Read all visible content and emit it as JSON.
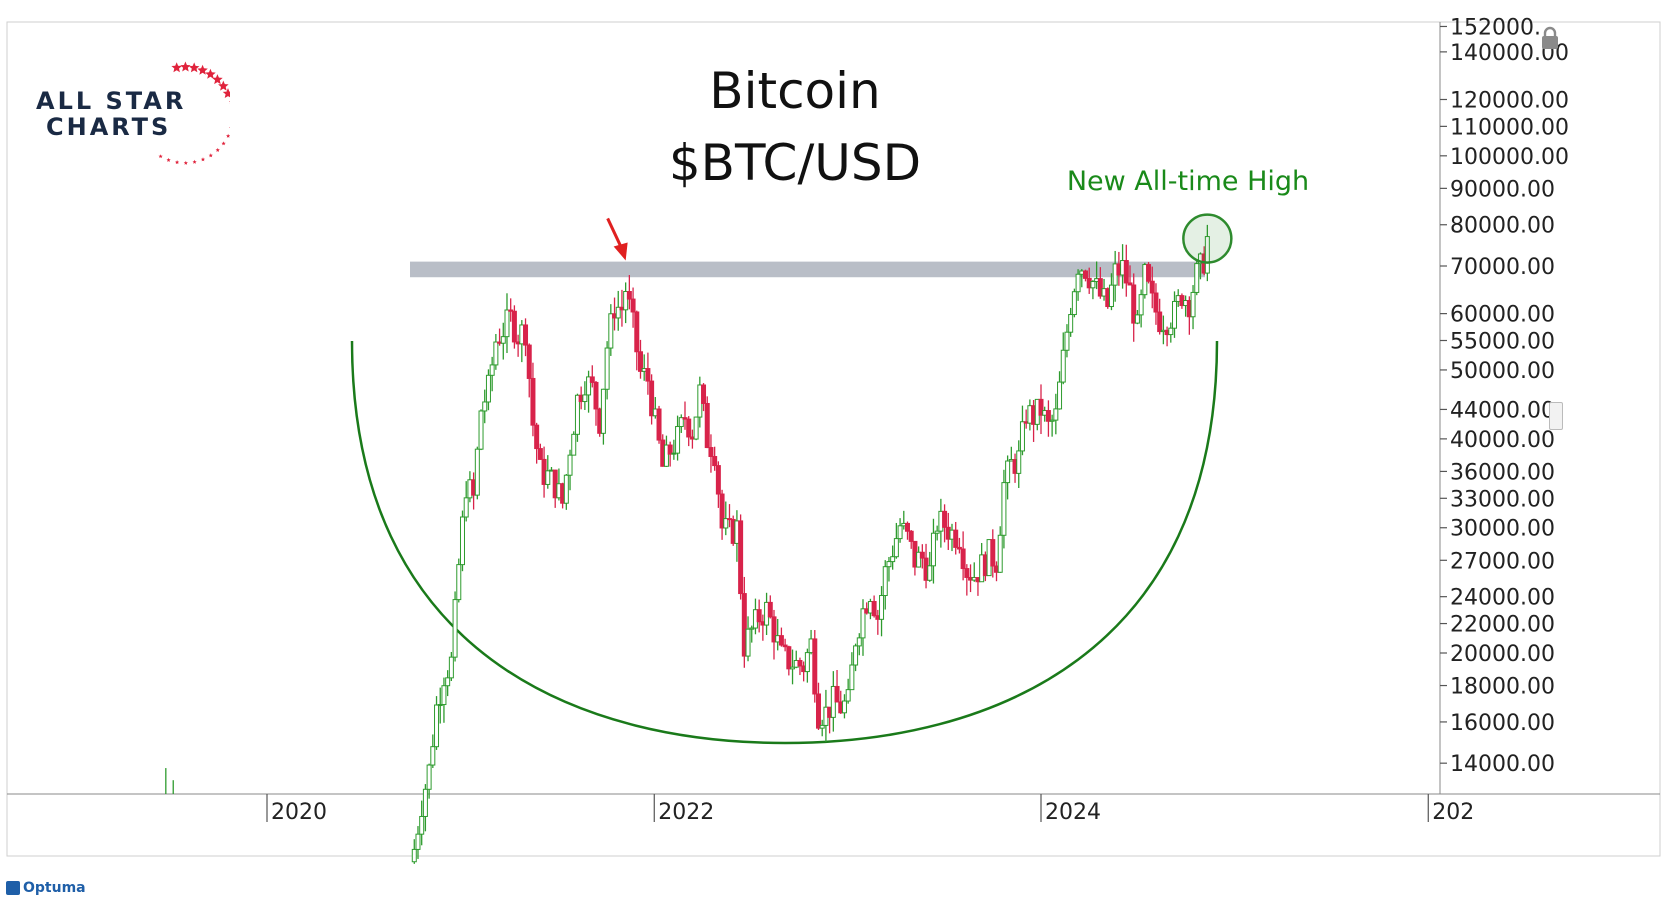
{
  "colors": {
    "up": "#2e9b2e",
    "down": "#d8234a",
    "resistance_band": "#b9bec7",
    "arc": "#1a7a1a",
    "circle": "#2e8b2e",
    "arrow": "#e02020",
    "annotation": "#1a8a1a",
    "logo_navy": "#1a2a44",
    "logo_red": "#e0233c",
    "brand_blue": "#1f5fa8"
  },
  "logo": {
    "line1": "ALL STAR",
    "line2": "CHARTS"
  },
  "footer": {
    "brand": "Optuma"
  },
  "icons": [
    "lock-icon",
    "scroll-handle-icon",
    "star-icon"
  ],
  "chart_data": {
    "type": "candlestick",
    "title": "Bitcoin",
    "subtitle": "$BTC/USD",
    "annotation": "New All-time High",
    "yscale": "log",
    "ylim": [
      12000,
      160000
    ],
    "xlim": [
      "2019-01-01",
      "2026-03-01"
    ],
    "grid": false,
    "yticks": [
      "152000.",
      "140000.00",
      "120000.00",
      "110000.00",
      "100000.00",
      "90000.00",
      "80000.00",
      "70000.00",
      "60000.00",
      "55000.00",
      "50000.00",
      "44000.00",
      "40000.00",
      "36000.00",
      "33000.00",
      "30000.00",
      "27000.00",
      "24000.00",
      "22000.00",
      "20000.00",
      "18000.00",
      "16000.00",
      "14000.00"
    ],
    "ytick_values": [
      152000,
      140000,
      120000,
      110000,
      100000,
      90000,
      80000,
      70000,
      60000,
      55000,
      50000,
      44000,
      40000,
      36000,
      33000,
      30000,
      27000,
      24000,
      22000,
      20000,
      18000,
      16000,
      14000
    ],
    "xticks": [
      "2020",
      "2022",
      "2024",
      "202"
    ],
    "xtick_dates": [
      "2020-01-01",
      "2022-01-01",
      "2024-01-01",
      "2026-01-01"
    ],
    "resistance_band": {
      "from": "2020-11-15",
      "to": "2024-11-10",
      "low": 67500,
      "high": 71000
    },
    "arrow_points_to": {
      "date": "2021-11-08",
      "value": 69000
    },
    "highlight_circle": {
      "date": "2024-11-10",
      "value": 76500
    },
    "price_path": [
      [
        "2020-10-05",
        10600
      ],
      [
        "2020-10-19",
        12300
      ],
      [
        "2020-11-02",
        13700
      ],
      [
        "2020-11-16",
        16800
      ],
      [
        "2020-11-30",
        18700
      ],
      [
        "2020-12-14",
        19400
      ],
      [
        "2020-12-28",
        26500
      ],
      [
        "2021-01-11",
        34500
      ],
      [
        "2021-01-25",
        33000
      ],
      [
        "2021-02-08",
        44000
      ],
      [
        "2021-02-22",
        47000
      ],
      [
        "2021-03-08",
        55000
      ],
      [
        "2021-03-22",
        57000
      ],
      [
        "2021-04-05",
        59000
      ],
      [
        "2021-04-19",
        56000
      ],
      [
        "2021-05-03",
        57000
      ],
      [
        "2021-05-17",
        42000
      ],
      [
        "2021-05-31",
        36000
      ],
      [
        "2021-06-14",
        35500
      ],
      [
        "2021-06-28",
        34500
      ],
      [
        "2021-07-12",
        32500
      ],
      [
        "2021-07-26",
        39000
      ],
      [
        "2021-08-09",
        45500
      ],
      [
        "2021-08-23",
        48500
      ],
      [
        "2021-09-06",
        47000
      ],
      [
        "2021-09-20",
        42500
      ],
      [
        "2021-10-04",
        54000
      ],
      [
        "2021-10-18",
        61500
      ],
      [
        "2021-11-01",
        61000
      ],
      [
        "2021-11-08",
        65000
      ],
      [
        "2021-11-22",
        57500
      ],
      [
        "2021-12-06",
        49500
      ],
      [
        "2021-12-20",
        48500
      ],
      [
        "2022-01-03",
        42000
      ],
      [
        "2022-01-17",
        36500
      ],
      [
        "2022-01-31",
        38500
      ],
      [
        "2022-02-14",
        40000
      ],
      [
        "2022-02-28",
        43000
      ],
      [
        "2022-03-14",
        41000
      ],
      [
        "2022-03-28",
        46500
      ],
      [
        "2022-04-11",
        40000
      ],
      [
        "2022-04-25",
        38500
      ],
      [
        "2022-05-09",
        30000
      ],
      [
        "2022-05-23",
        29500
      ],
      [
        "2022-06-06",
        30000
      ],
      [
        "2022-06-20",
        20500
      ],
      [
        "2022-07-04",
        21500
      ],
      [
        "2022-07-18",
        22500
      ],
      [
        "2022-08-01",
        23000
      ],
      [
        "2022-08-15",
        21500
      ],
      [
        "2022-08-29",
        19800
      ],
      [
        "2022-09-12",
        19500
      ],
      [
        "2022-09-26",
        19300
      ],
      [
        "2022-10-10",
        19200
      ],
      [
        "2022-10-24",
        20600
      ],
      [
        "2022-11-07",
        16500
      ],
      [
        "2022-11-21",
        16500
      ],
      [
        "2022-12-05",
        17100
      ],
      [
        "2022-12-19",
        16800
      ],
      [
        "2023-01-02",
        17000
      ],
      [
        "2023-01-16",
        21000
      ],
      [
        "2023-01-30",
        23000
      ],
      [
        "2023-02-13",
        24500
      ],
      [
        "2023-02-27",
        22500
      ],
      [
        "2023-03-13",
        26000
      ],
      [
        "2023-03-27",
        28000
      ],
      [
        "2023-04-10",
        30200
      ],
      [
        "2023-04-24",
        29000
      ],
      [
        "2023-05-08",
        27000
      ],
      [
        "2023-05-22",
        27200
      ],
      [
        "2023-06-05",
        26000
      ],
      [
        "2023-06-19",
        30500
      ],
      [
        "2023-07-03",
        30300
      ],
      [
        "2023-07-17",
        29500
      ],
      [
        "2023-07-31",
        29200
      ],
      [
        "2023-08-14",
        26200
      ],
      [
        "2023-08-28",
        25800
      ],
      [
        "2023-09-11",
        26500
      ],
      [
        "2023-09-25",
        27500
      ],
      [
        "2023-10-09",
        27000
      ],
      [
        "2023-10-23",
        34500
      ],
      [
        "2023-11-06",
        36800
      ],
      [
        "2023-11-20",
        37500
      ],
      [
        "2023-12-04",
        43500
      ],
      [
        "2023-12-18",
        43000
      ],
      [
        "2024-01-01",
        44000
      ],
      [
        "2024-01-15",
        41500
      ],
      [
        "2024-01-29",
        43000
      ],
      [
        "2024-02-12",
        51800
      ],
      [
        "2024-02-26",
        62000
      ],
      [
        "2024-03-11",
        70500
      ],
      [
        "2024-03-25",
        69500
      ],
      [
        "2024-04-08",
        66500
      ],
      [
        "2024-04-22",
        63500
      ],
      [
        "2024-05-06",
        61500
      ],
      [
        "2024-05-20",
        68500
      ],
      [
        "2024-06-03",
        69500
      ],
      [
        "2024-06-17",
        64500
      ],
      [
        "2024-07-01",
        57000
      ],
      [
        "2024-07-15",
        67500
      ],
      [
        "2024-07-29",
        62000
      ],
      [
        "2024-08-12",
        59000
      ],
      [
        "2024-08-26",
        59000
      ],
      [
        "2024-09-09",
        60000
      ],
      [
        "2024-09-23",
        64000
      ],
      [
        "2024-10-07",
        62500
      ],
      [
        "2024-10-21",
        68000
      ],
      [
        "2024-10-28",
        69500
      ],
      [
        "2024-11-04",
        71500
      ],
      [
        "2024-11-10",
        77000
      ]
    ],
    "pre_2020_points": [
      [
        "2019-06-24",
        13000
      ],
      [
        "2019-07-08",
        12500
      ]
    ]
  }
}
